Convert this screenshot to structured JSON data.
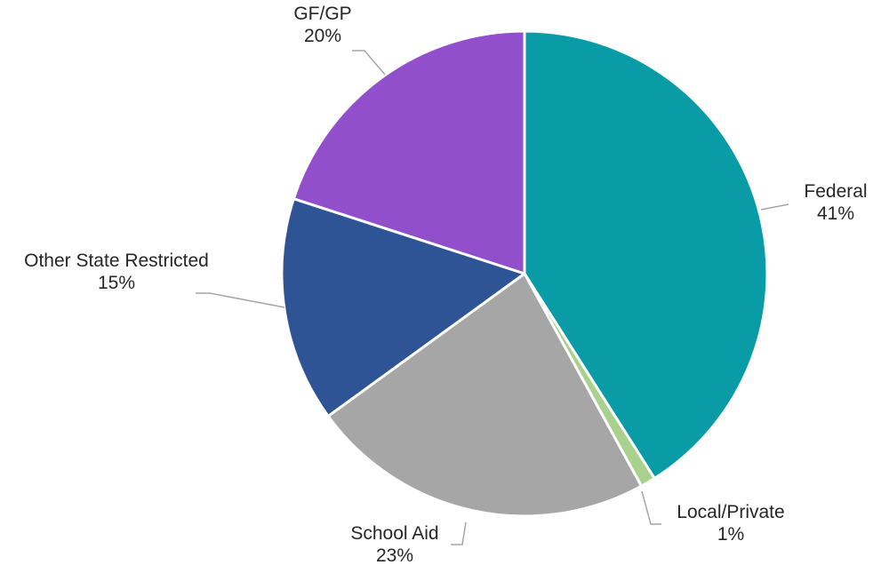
{
  "chart_data": {
    "type": "pie",
    "title": "",
    "start_angle_deg": 0,
    "direction": "clockwise",
    "slices": [
      {
        "name": "Federal",
        "value": 41,
        "label": "41%",
        "color": "#0a9ca6"
      },
      {
        "name": "Local/Private",
        "value": 1,
        "label": "1%",
        "color": "#a9d18e"
      },
      {
        "name": "School Aid",
        "value": 23,
        "label": "23%",
        "color": "#a6a6a6"
      },
      {
        "name": "Other State Restricted",
        "value": 15,
        "label": "15%",
        "color": "#2f5496"
      },
      {
        "name": "GF/GP",
        "value": 20,
        "label": "20%",
        "color": "#914fcb"
      }
    ],
    "legend": "none",
    "data_labels": "category-and-percent-outside-with-leader-lines"
  }
}
